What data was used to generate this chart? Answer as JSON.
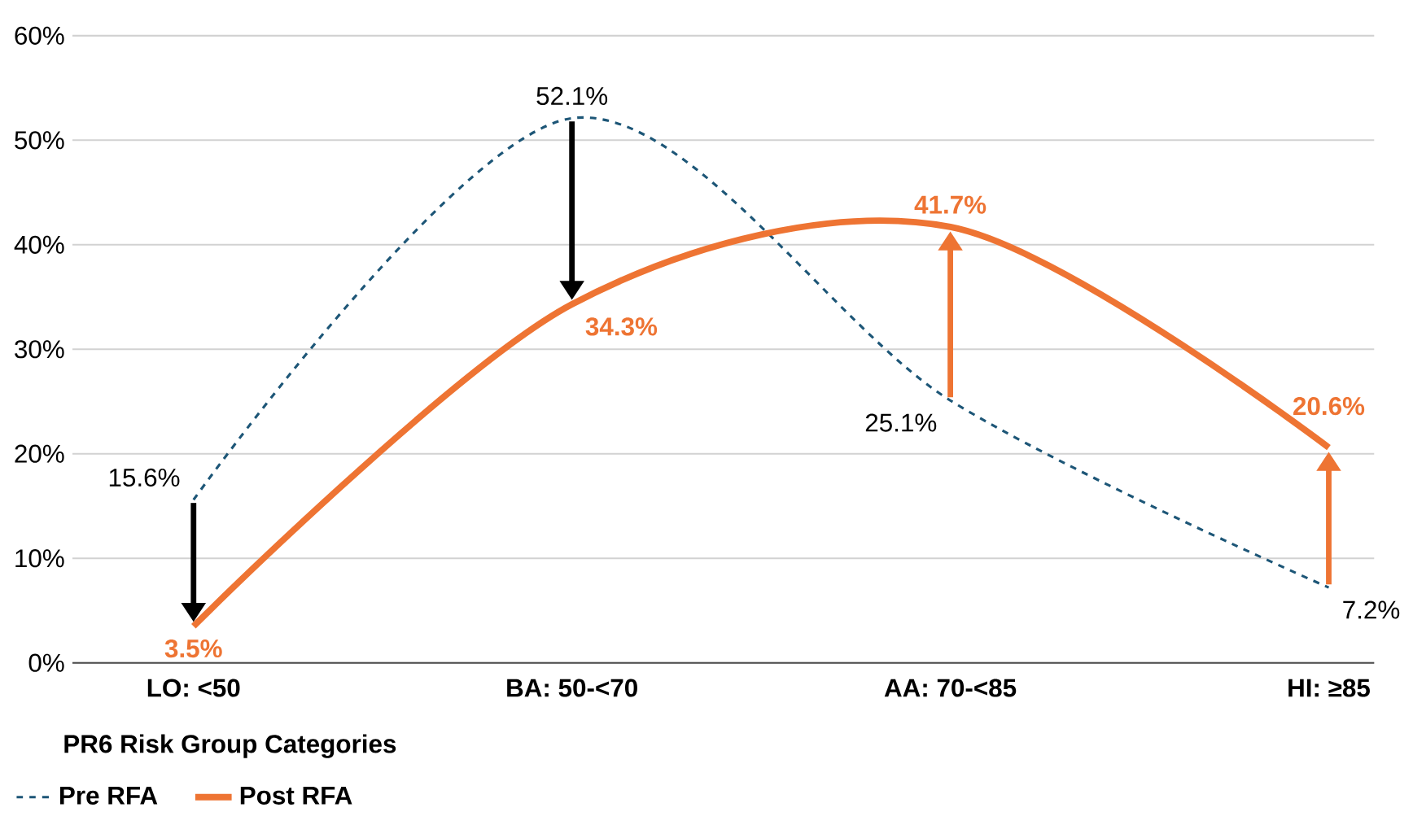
{
  "chart_data": {
    "type": "line",
    "xlabel": "PR6 Risk Group Categories",
    "categories": [
      "LO: <50",
      "BA: 50-<70",
      "AA: 70-<85",
      "HI: ≥85"
    ],
    "series": [
      {
        "name": "Pre RFA",
        "color": "#1d5677",
        "line_style": "dashed",
        "values": [
          15.6,
          52.1,
          25.1,
          7.2
        ],
        "value_labels": [
          "15.6%",
          "52.1%",
          "25.1%",
          "7.2%"
        ]
      },
      {
        "name": "Post RFA",
        "color": "#ee7433",
        "line_style": "solid",
        "values": [
          3.5,
          34.3,
          41.7,
          20.6
        ],
        "value_labels": [
          "3.5%",
          "34.3%",
          "41.7%",
          "20.6%"
        ]
      }
    ],
    "ylim": [
      0,
      60
    ],
    "yticks": [
      {
        "value": 0,
        "label": "0%"
      },
      {
        "value": 10,
        "label": "10%"
      },
      {
        "value": 20,
        "label": "20%"
      },
      {
        "value": 30,
        "label": "30%"
      },
      {
        "value": 40,
        "label": "40%"
      },
      {
        "value": 50,
        "label": "50%"
      },
      {
        "value": 60,
        "label": "60%"
      }
    ],
    "grid": "y",
    "legend": "bottom",
    "marker": "none"
  }
}
